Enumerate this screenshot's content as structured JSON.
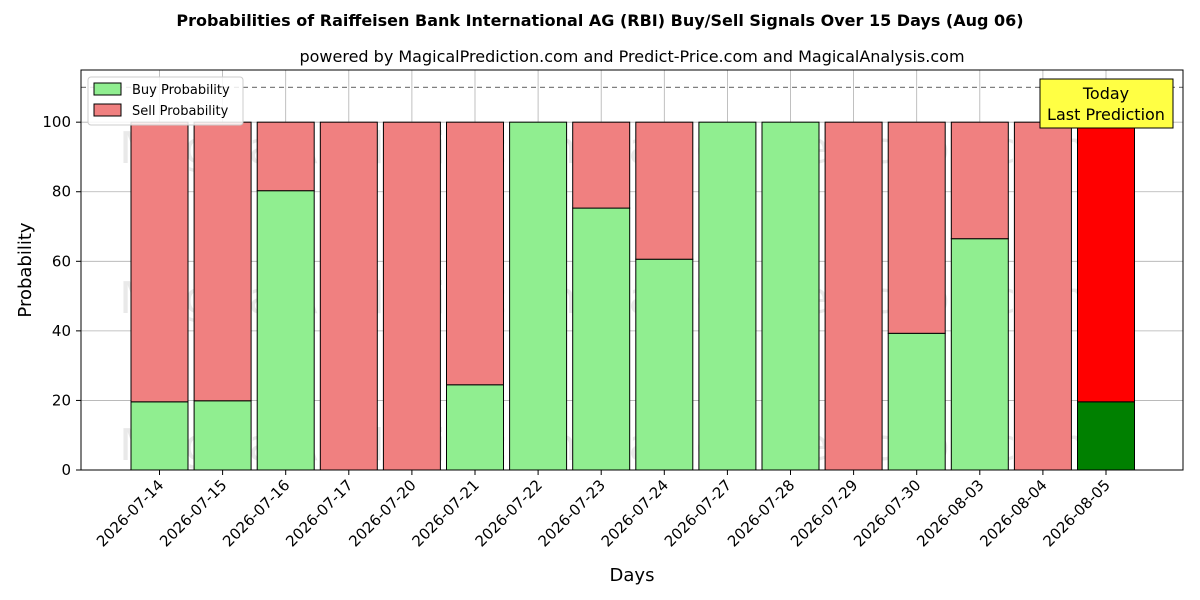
{
  "chart_data": {
    "type": "bar",
    "stacked": true,
    "title": "Probabilities of Raiffeisen Bank International AG (RBI) Buy/Sell Signals Over 15 Days (Aug 06)",
    "subtitle": "powered by MagicalPrediction.com and Predict-Price.com and MagicalAnalysis.com",
    "xlabel": "Days",
    "ylabel": "Probability",
    "ylim": [
      0,
      115
    ],
    "yticks": [
      0,
      20,
      40,
      60,
      80,
      100
    ],
    "reference_line": 110,
    "grid": true,
    "legend_position": "top-left",
    "categories": [
      "2026-07-14",
      "2026-07-15",
      "2026-07-16",
      "2026-07-17",
      "2026-07-20",
      "2026-07-21",
      "2026-07-22",
      "2026-07-23",
      "2026-07-24",
      "2026-07-27",
      "2026-07-28",
      "2026-07-29",
      "2026-07-30",
      "2026-08-03",
      "2026-08-04",
      "2026-08-05"
    ],
    "series": [
      {
        "name": "Buy Probability",
        "color": "#90ee90",
        "values": [
          19.6,
          19.9,
          80.3,
          0,
          0,
          24.5,
          100,
          75.3,
          60.6,
          100,
          100,
          0,
          39.3,
          66.5,
          0,
          19.6
        ]
      },
      {
        "name": "Sell Probability",
        "color": "#f08080",
        "values": [
          80.4,
          80.1,
          19.7,
          100,
          100,
          75.5,
          0,
          24.7,
          39.4,
          0,
          0,
          100,
          60.7,
          33.5,
          100,
          80.4
        ]
      }
    ],
    "highlight": {
      "index": 15,
      "buy_color": "#008000",
      "sell_color": "#ff0000"
    },
    "annotation": {
      "line1": "Today",
      "line2": "Last Prediction",
      "background": "#ffff44"
    },
    "watermarks": [
      "MagicalAnalysis.com",
      "MagicalPrediction.com"
    ]
  }
}
